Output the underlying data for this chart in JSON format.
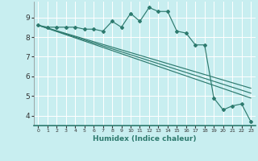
{
  "xlabel": "Humidex (Indice chaleur)",
  "ylabel": "",
  "background_color": "#c8eef0",
  "grid_color": "#ffffff",
  "line_color": "#2d7a6e",
  "xlim": [
    -0.5,
    23.5
  ],
  "ylim": [
    3.5,
    9.8
  ],
  "yticks": [
    4,
    5,
    6,
    7,
    8,
    9
  ],
  "xticks": [
    0,
    1,
    2,
    3,
    4,
    5,
    6,
    7,
    8,
    9,
    10,
    11,
    12,
    13,
    14,
    15,
    16,
    17,
    18,
    19,
    20,
    21,
    22,
    23
  ],
  "line1_x": [
    0,
    1,
    2,
    3,
    4,
    5,
    6,
    7,
    8,
    9,
    10,
    11,
    12,
    13,
    14,
    15,
    16,
    17,
    18,
    19,
    20,
    21,
    22,
    23
  ],
  "line1_y": [
    8.6,
    8.5,
    8.5,
    8.5,
    8.5,
    8.4,
    8.4,
    8.3,
    8.8,
    8.5,
    9.2,
    8.8,
    9.5,
    9.3,
    9.3,
    8.3,
    8.2,
    7.6,
    7.6,
    4.9,
    4.3,
    4.5,
    4.6,
    3.7
  ],
  "line2_x": [
    0,
    23
  ],
  "line2_y": [
    8.6,
    4.9
  ],
  "line3_x": [
    0,
    23
  ],
  "line3_y": [
    8.6,
    5.15
  ],
  "line4_x": [
    0,
    23
  ],
  "line4_y": [
    8.6,
    5.4
  ]
}
